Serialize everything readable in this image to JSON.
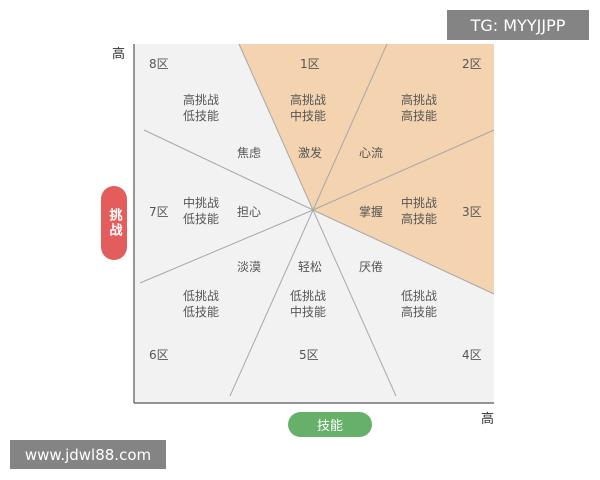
{
  "watermarks": {
    "top": "TG: MYYJJPP",
    "bottom": "www.jdwl88.com"
  },
  "axes": {
    "y_high": "高",
    "x_high": "高",
    "y_label": "挑战",
    "x_label": "技能"
  },
  "colors": {
    "highlight": "#f3d3b0",
    "background": "#f2f2f2",
    "challenge_pill": "#e35d5d",
    "skill_pill": "#66b06a"
  },
  "zones": {
    "z1": "1区",
    "z2": "2区",
    "z3": "3区",
    "z4": "4区",
    "z5": "5区",
    "z6": "6区",
    "z7": "7区",
    "z8": "8区"
  },
  "states": {
    "anxiety": "焦虑",
    "arousal": "激发",
    "flow": "心流",
    "control": "掌握",
    "worry": "担心",
    "apathy": "淡漠",
    "relaxation": "轻松",
    "boredom": "厌倦"
  },
  "levels": {
    "z8": [
      "高挑战",
      "低技能"
    ],
    "z1": [
      "高挑战",
      "中技能"
    ],
    "z2": [
      "高挑战",
      "高技能"
    ],
    "z7": [
      "中挑战",
      "低技能"
    ],
    "z3": [
      "中挑战",
      "高技能"
    ],
    "z6": [
      "低挑战",
      "低技能"
    ],
    "z5": [
      "低挑战",
      "中技能"
    ],
    "z4": [
      "低挑战",
      "高技能"
    ]
  }
}
